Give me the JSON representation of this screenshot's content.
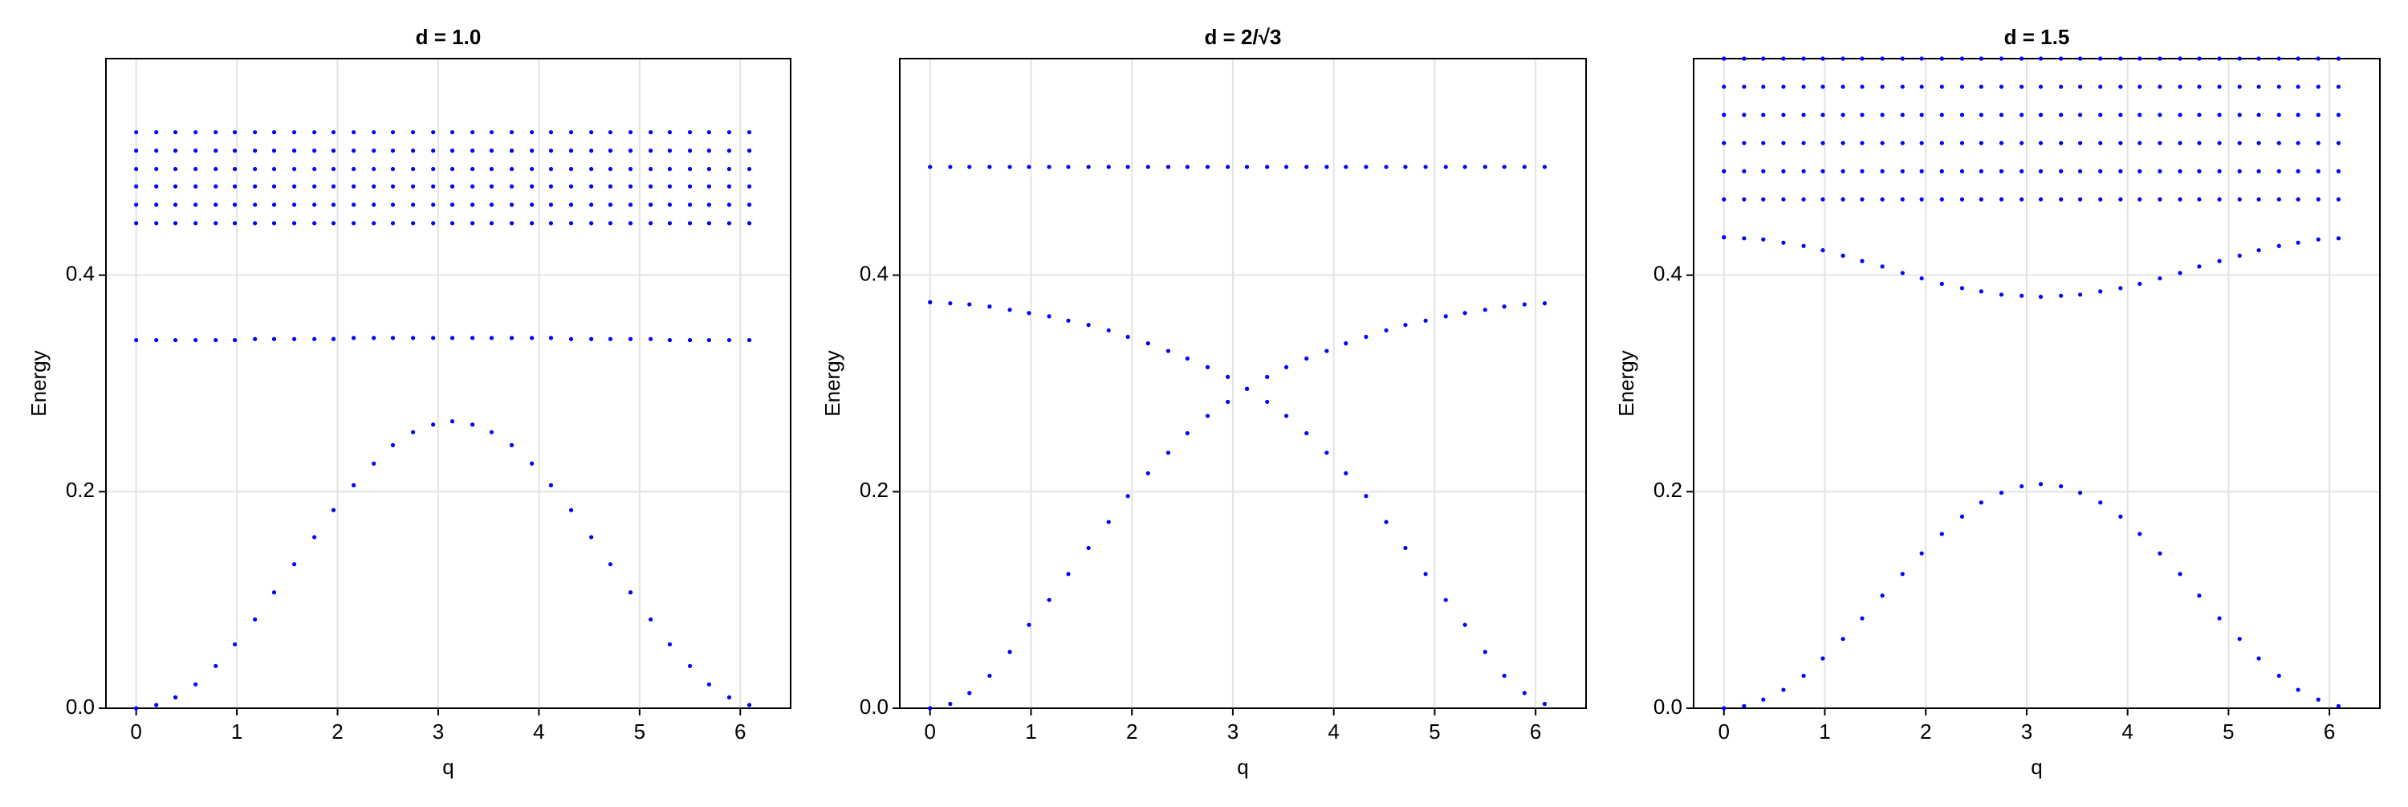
{
  "chart_data": [
    {
      "type": "scatter",
      "title": "d = 1.0",
      "xlabel": "q",
      "ylabel": "Energy",
      "xlim": [
        -0.3,
        6.5
      ],
      "ylim": [
        0,
        0.6
      ],
      "xticks": [
        0,
        1,
        2,
        3,
        4,
        5,
        6
      ],
      "yticks": [
        {
          "value": 0,
          "label": "0.0"
        },
        0.2,
        0.4
      ],
      "grid": true,
      "x": [
        0,
        0.2,
        0.39,
        0.59,
        0.79,
        0.98,
        1.18,
        1.37,
        1.57,
        1.77,
        1.96,
        2.16,
        2.36,
        2.55,
        2.75,
        2.95,
        3.14,
        3.34,
        3.53,
        3.73,
        3.93,
        4.12,
        4.32,
        4.52,
        4.71,
        4.91,
        5.11,
        5.3,
        5.5,
        5.69,
        5.89,
        6.09
      ],
      "series": [
        {
          "color": "#0000ff",
          "values": [
            0,
            0.003,
            0.01,
            0.022,
            0.039,
            0.059,
            0.082,
            0.107,
            0.133,
            0.158,
            0.183,
            0.206,
            0.226,
            0.243,
            0.255,
            0.262,
            0.265,
            0.262,
            0.255,
            0.243,
            0.226,
            0.206,
            0.183,
            0.158,
            0.133,
            0.107,
            0.082,
            0.059,
            0.039,
            0.022,
            0.01,
            0.003
          ]
        },
        {
          "color": "#0000ff",
          "values": [
            0.34,
            0.34,
            0.34,
            0.34,
            0.34,
            0.34,
            0.341,
            0.341,
            0.341,
            0.341,
            0.341,
            0.342,
            0.342,
            0.342,
            0.342,
            0.342,
            0.342,
            0.342,
            0.342,
            0.342,
            0.342,
            0.342,
            0.341,
            0.341,
            0.341,
            0.341,
            0.341,
            0.34,
            0.34,
            0.34,
            0.34,
            0.34
          ]
        },
        {
          "color": "#0000ff",
          "values": [
            0.448,
            0.448,
            0.448,
            0.448,
            0.448,
            0.448,
            0.448,
            0.448,
            0.448,
            0.448,
            0.448,
            0.448,
            0.448,
            0.448,
            0.448,
            0.448,
            0.448,
            0.448,
            0.448,
            0.448,
            0.448,
            0.448,
            0.448,
            0.448,
            0.448,
            0.448,
            0.448,
            0.448,
            0.448,
            0.448,
            0.448,
            0.448
          ]
        },
        {
          "color": "#0000ff",
          "values": [
            0.465,
            0.465,
            0.465,
            0.465,
            0.465,
            0.465,
            0.465,
            0.465,
            0.465,
            0.465,
            0.465,
            0.465,
            0.465,
            0.465,
            0.465,
            0.465,
            0.465,
            0.465,
            0.465,
            0.465,
            0.465,
            0.465,
            0.465,
            0.465,
            0.465,
            0.465,
            0.465,
            0.465,
            0.465,
            0.465,
            0.465,
            0.465
          ]
        },
        {
          "color": "#0000ff",
          "values": [
            0.482,
            0.482,
            0.482,
            0.482,
            0.482,
            0.482,
            0.482,
            0.482,
            0.482,
            0.482,
            0.482,
            0.482,
            0.482,
            0.482,
            0.482,
            0.482,
            0.482,
            0.482,
            0.482,
            0.482,
            0.482,
            0.482,
            0.482,
            0.482,
            0.482,
            0.482,
            0.482,
            0.482,
            0.482,
            0.482,
            0.482,
            0.482
          ]
        },
        {
          "color": "#0000ff",
          "values": [
            0.498,
            0.498,
            0.498,
            0.498,
            0.498,
            0.498,
            0.498,
            0.498,
            0.498,
            0.498,
            0.498,
            0.498,
            0.498,
            0.498,
            0.498,
            0.498,
            0.498,
            0.498,
            0.498,
            0.498,
            0.498,
            0.498,
            0.498,
            0.498,
            0.498,
            0.498,
            0.498,
            0.498,
            0.498,
            0.498,
            0.498,
            0.498
          ]
        },
        {
          "color": "#0000ff",
          "values": [
            0.515,
            0.515,
            0.515,
            0.515,
            0.515,
            0.515,
            0.515,
            0.515,
            0.515,
            0.515,
            0.515,
            0.515,
            0.515,
            0.515,
            0.515,
            0.515,
            0.515,
            0.515,
            0.515,
            0.515,
            0.515,
            0.515,
            0.515,
            0.515,
            0.515,
            0.515,
            0.515,
            0.515,
            0.515,
            0.515,
            0.515,
            0.515
          ]
        },
        {
          "color": "#0000ff",
          "values": [
            0.532,
            0.532,
            0.532,
            0.532,
            0.532,
            0.532,
            0.532,
            0.532,
            0.532,
            0.532,
            0.532,
            0.532,
            0.532,
            0.532,
            0.532,
            0.532,
            0.532,
            0.532,
            0.532,
            0.532,
            0.532,
            0.532,
            0.532,
            0.532,
            0.532,
            0.532,
            0.532,
            0.532,
            0.532,
            0.532,
            0.532,
            0.532
          ]
        }
      ]
    },
    {
      "type": "scatter",
      "title": "d = 2/√3",
      "xlabel": "q",
      "ylabel": "Energy",
      "xlim": [
        -0.3,
        6.5
      ],
      "ylim": [
        0,
        0.6
      ],
      "xticks": [
        0,
        1,
        2,
        3,
        4,
        5,
        6
      ],
      "yticks": [
        {
          "value": 0,
          "label": "0.0"
        },
        0.2,
        0.4
      ],
      "grid": true,
      "x": [
        0,
        0.2,
        0.39,
        0.59,
        0.79,
        0.98,
        1.18,
        1.37,
        1.57,
        1.77,
        1.96,
        2.16,
        2.36,
        2.55,
        2.75,
        2.95,
        3.14,
        3.34,
        3.53,
        3.73,
        3.93,
        4.12,
        4.32,
        4.52,
        4.71,
        4.91,
        5.11,
        5.3,
        5.5,
        5.69,
        5.89,
        6.09
      ],
      "series": [
        {
          "color": "#0000ff",
          "values": [
            0,
            0.004,
            0.014,
            0.03,
            0.052,
            0.077,
            0.1,
            0.124,
            0.148,
            0.172,
            0.196,
            0.217,
            0.236,
            0.254,
            0.27,
            0.283,
            0.295,
            0.306,
            0.315,
            0.323,
            0.33,
            0.337,
            0.343,
            0.349,
            0.354,
            0.358,
            0.362,
            0.365,
            0.368,
            0.371,
            0.373,
            0.374
          ]
        },
        {
          "color": "#0000ff",
          "values": [
            0.375,
            0.374,
            0.373,
            0.371,
            0.368,
            0.365,
            0.362,
            0.358,
            0.354,
            0.349,
            0.343,
            0.337,
            0.33,
            0.323,
            0.315,
            0.306,
            0.295,
            0.283,
            0.27,
            0.254,
            0.236,
            0.217,
            0.196,
            0.172,
            0.148,
            0.124,
            0.1,
            0.077,
            0.052,
            0.03,
            0.014,
            0.004
          ]
        },
        {
          "color": "#0000ff",
          "values": [
            0.5,
            0.5,
            0.5,
            0.5,
            0.5,
            0.5,
            0.5,
            0.5,
            0.5,
            0.5,
            0.5,
            0.5,
            0.5,
            0.5,
            0.5,
            0.5,
            0.5,
            0.5,
            0.5,
            0.5,
            0.5,
            0.5,
            0.5,
            0.5,
            0.5,
            0.5,
            0.5,
            0.5,
            0.5,
            0.5,
            0.5,
            0.5
          ]
        }
      ]
    },
    {
      "type": "scatter",
      "title": "d = 1.5",
      "xlabel": "q",
      "ylabel": "Energy",
      "xlim": [
        -0.3,
        6.5
      ],
      "ylim": [
        0,
        0.6
      ],
      "xticks": [
        0,
        1,
        2,
        3,
        4,
        5,
        6
      ],
      "yticks": [
        {
          "value": 0,
          "label": "0.0"
        },
        0.2,
        0.4
      ],
      "grid": true,
      "x": [
        0,
        0.2,
        0.39,
        0.59,
        0.79,
        0.98,
        1.18,
        1.37,
        1.57,
        1.77,
        1.96,
        2.16,
        2.36,
        2.55,
        2.75,
        2.95,
        3.14,
        3.34,
        3.53,
        3.73,
        3.93,
        4.12,
        4.32,
        4.52,
        4.71,
        4.91,
        5.11,
        5.3,
        5.5,
        5.69,
        5.89,
        6.09
      ],
      "series": [
        {
          "color": "#0000ff",
          "values": [
            0,
            0.002,
            0.008,
            0.017,
            0.03,
            0.046,
            0.064,
            0.083,
            0.104,
            0.124,
            0.143,
            0.161,
            0.177,
            0.19,
            0.199,
            0.205,
            0.207,
            0.205,
            0.199,
            0.19,
            0.177,
            0.161,
            0.143,
            0.124,
            0.104,
            0.083,
            0.064,
            0.046,
            0.03,
            0.017,
            0.008,
            0.002
          ]
        },
        {
          "color": "#0000ff",
          "values": [
            0.435,
            0.434,
            0.433,
            0.43,
            0.427,
            0.423,
            0.418,
            0.413,
            0.408,
            0.402,
            0.397,
            0.392,
            0.388,
            0.385,
            0.382,
            0.381,
            0.38,
            0.381,
            0.382,
            0.385,
            0.388,
            0.392,
            0.397,
            0.402,
            0.408,
            0.413,
            0.418,
            0.423,
            0.427,
            0.43,
            0.433,
            0.434
          ]
        },
        {
          "color": "#0000ff",
          "values": [
            0.47,
            0.47,
            0.47,
            0.47,
            0.47,
            0.47,
            0.47,
            0.47,
            0.47,
            0.47,
            0.47,
            0.47,
            0.47,
            0.47,
            0.47,
            0.47,
            0.47,
            0.47,
            0.47,
            0.47,
            0.47,
            0.47,
            0.47,
            0.47,
            0.47,
            0.47,
            0.47,
            0.47,
            0.47,
            0.47,
            0.47,
            0.47
          ]
        },
        {
          "color": "#0000ff",
          "values": [
            0.496,
            0.496,
            0.496,
            0.496,
            0.496,
            0.496,
            0.496,
            0.496,
            0.496,
            0.496,
            0.496,
            0.496,
            0.496,
            0.496,
            0.496,
            0.496,
            0.496,
            0.496,
            0.496,
            0.496,
            0.496,
            0.496,
            0.496,
            0.496,
            0.496,
            0.496,
            0.496,
            0.496,
            0.496,
            0.496,
            0.496,
            0.496
          ]
        },
        {
          "color": "#0000ff",
          "values": [
            0.522,
            0.522,
            0.522,
            0.522,
            0.522,
            0.522,
            0.522,
            0.522,
            0.522,
            0.522,
            0.522,
            0.522,
            0.522,
            0.522,
            0.522,
            0.522,
            0.522,
            0.522,
            0.522,
            0.522,
            0.522,
            0.522,
            0.522,
            0.522,
            0.522,
            0.522,
            0.522,
            0.522,
            0.522,
            0.522,
            0.522,
            0.522
          ]
        },
        {
          "color": "#0000ff",
          "values": [
            0.548,
            0.548,
            0.548,
            0.548,
            0.548,
            0.548,
            0.548,
            0.548,
            0.548,
            0.548,
            0.548,
            0.548,
            0.548,
            0.548,
            0.548,
            0.548,
            0.548,
            0.548,
            0.548,
            0.548,
            0.548,
            0.548,
            0.548,
            0.548,
            0.548,
            0.548,
            0.548,
            0.548,
            0.548,
            0.548,
            0.548,
            0.548
          ]
        },
        {
          "color": "#0000ff",
          "values": [
            0.574,
            0.574,
            0.574,
            0.574,
            0.574,
            0.574,
            0.574,
            0.574,
            0.574,
            0.574,
            0.574,
            0.574,
            0.574,
            0.574,
            0.574,
            0.574,
            0.574,
            0.574,
            0.574,
            0.574,
            0.574,
            0.574,
            0.574,
            0.574,
            0.574,
            0.574,
            0.574,
            0.574,
            0.574,
            0.574,
            0.574,
            0.574
          ]
        },
        {
          "color": "#0000ff",
          "values": [
            0.6,
            0.6,
            0.6,
            0.6,
            0.6,
            0.6,
            0.6,
            0.6,
            0.6,
            0.6,
            0.6,
            0.6,
            0.6,
            0.6,
            0.6,
            0.6,
            0.6,
            0.6,
            0.6,
            0.6,
            0.6,
            0.6,
            0.6,
            0.6,
            0.6,
            0.6,
            0.6,
            0.6,
            0.6,
            0.6,
            0.6,
            0.6
          ]
        }
      ]
    }
  ]
}
